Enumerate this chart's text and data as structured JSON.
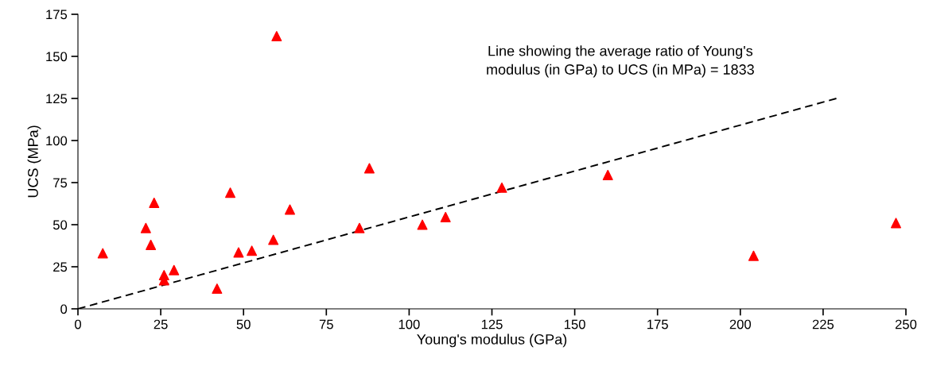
{
  "chart_data": {
    "type": "scatter",
    "xlabel": "Young's modulus (GPa)",
    "ylabel": "UCS (MPa)",
    "xlim": [
      0,
      250
    ],
    "xticks": [
      0,
      25,
      50,
      75,
      100,
      125,
      150,
      175,
      200,
      225,
      250
    ],
    "ylim": [
      0,
      175
    ],
    "yticks": [
      0,
      25,
      50,
      75,
      100,
      125,
      150,
      175
    ],
    "grid": false,
    "legend": false,
    "marker": "triangle",
    "annotations": [
      "Line showing the average ratio of Young's modulus (in GPa) to UCS (in MPa) = 1833"
    ],
    "series": [
      {
        "color": "#ff0000",
        "x": [
          7.5,
          20.5,
          22,
          23,
          26,
          26,
          29,
          42,
          46,
          48.5,
          52.5,
          59,
          60,
          64,
          85,
          88,
          104,
          111,
          128,
          160,
          204,
          247
        ],
        "values": [
          33,
          48,
          38,
          63,
          20,
          17,
          23,
          12,
          69,
          33.5,
          34.5,
          41,
          162,
          59,
          48,
          83.5,
          50,
          54.5,
          72,
          79.5,
          31.5,
          51
        ]
      },
      {
        "type": "line",
        "color": "#000000",
        "line_style": "dashed",
        "marker": "none",
        "x": [
          0,
          229
        ],
        "values": [
          0,
          125
        ]
      }
    ]
  }
}
